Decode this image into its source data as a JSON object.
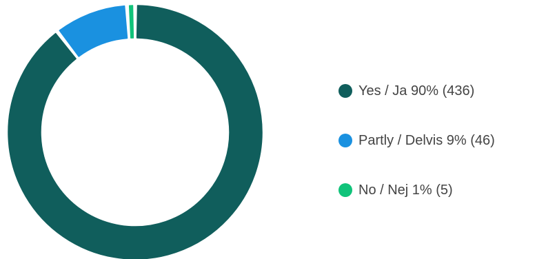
{
  "chart_data": {
    "type": "pie",
    "variant": "donut",
    "title": "",
    "categories": [
      "Yes / Ja",
      "Partly / Delvis",
      "No / Nej"
    ],
    "values": [
      436,
      46,
      5
    ],
    "percent_labels": [
      "90%",
      "9%",
      "1%"
    ],
    "colors": [
      "#105e5c",
      "#1a91e0",
      "#10c37a"
    ],
    "legend_position": "right",
    "legend_labels": [
      "Yes / Ja 90% (436)",
      "Partly / Delvis 9% (46)",
      "No / Nej 1% (5)"
    ]
  }
}
